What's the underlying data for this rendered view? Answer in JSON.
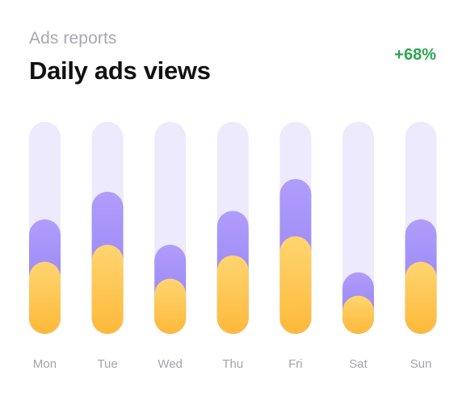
{
  "header": {
    "subtitle": "Ads reports",
    "title": "Daily ads views",
    "change": "+68%"
  },
  "colors": {
    "track": "#eceafc",
    "purple_top": "#b09dfb",
    "purple_bottom": "#8f7bf0",
    "yellow_top": "#ffd570",
    "yellow_bottom": "#fdb93a",
    "change": "#2ea44f"
  },
  "chart_data": {
    "type": "bar",
    "title": "Daily ads views",
    "categories": [
      "Mon",
      "Tue",
      "Wed",
      "Thu",
      "Fri",
      "Sat",
      "Sun"
    ],
    "ylim": [
      0,
      100
    ],
    "grid": false,
    "series": [
      {
        "values": [
          54,
          67,
          42,
          58,
          73,
          29,
          54
        ]
      },
      {
        "values": [
          34,
          42,
          26,
          37,
          46,
          18,
          34
        ]
      }
    ]
  }
}
